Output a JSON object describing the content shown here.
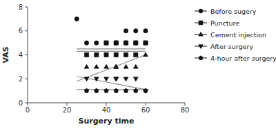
{
  "chart_data": {
    "type": "scatter",
    "xlabel": "Surgery time",
    "ylabel": "VAS",
    "xlim": [
      0,
      80
    ],
    "ylim": [
      0,
      8
    ],
    "xticks": [
      0,
      20,
      40,
      60,
      80
    ],
    "yticks": [
      0,
      2,
      4,
      6,
      8
    ],
    "grid": false,
    "legend": "right",
    "series": [
      {
        "name": "Before sugery",
        "marker": "circle",
        "color": "#111111",
        "x": [
          25,
          30,
          35,
          40,
          45,
          45,
          50,
          50,
          55,
          55,
          60,
          60
        ],
        "values": [
          7,
          5,
          5,
          5,
          5,
          5,
          6,
          5,
          6,
          5,
          5,
          6
        ],
        "trend": {
          "x": [
            25,
            60
          ],
          "values": [
            4.3,
            4.3
          ],
          "color": "#888888"
        }
      },
      {
        "name": "Puncture",
        "marker": "square",
        "color": "#111111",
        "x": [
          30,
          35,
          40,
          40,
          45,
          45,
          50,
          50,
          55,
          55,
          60
        ],
        "values": [
          4,
          4,
          4,
          5,
          4,
          5,
          4,
          5,
          4,
          5,
          5
        ],
        "trend": {
          "x": [
            25,
            60
          ],
          "values": [
            4.5,
            4.5
          ],
          "color": "#888888"
        }
      },
      {
        "name": "Cement injection",
        "marker": "triangle-up",
        "color": "#111111",
        "x": [
          30,
          35,
          40,
          45,
          45,
          50,
          55,
          60
        ],
        "values": [
          3,
          3,
          3,
          3,
          3,
          3,
          3,
          4
        ],
        "trend": {
          "x": [
            25,
            60
          ],
          "values": [
            1.8,
            4.0
          ],
          "color": "#888888"
        }
      },
      {
        "name": "After surgery",
        "marker": "triangle-down",
        "color": "#111111",
        "x": [
          30,
          35,
          40,
          45,
          45,
          50,
          55,
          60
        ],
        "values": [
          2,
          2,
          2,
          2,
          2,
          2,
          2,
          1
        ],
        "trend": {
          "x": [
            25,
            60
          ],
          "values": [
            2.2,
            1.1
          ],
          "color": "#888888"
        }
      },
      {
        "name": "4-hour after surgery",
        "marker": "pentagon",
        "color": "#111111",
        "x": [
          30,
          35,
          40,
          45,
          50,
          55,
          60
        ],
        "values": [
          1,
          1,
          1,
          1,
          1,
          1,
          1
        ],
        "trend": {
          "x": [
            25,
            60
          ],
          "values": [
            1.1,
            1.1
          ],
          "color": "#888888"
        }
      }
    ]
  }
}
